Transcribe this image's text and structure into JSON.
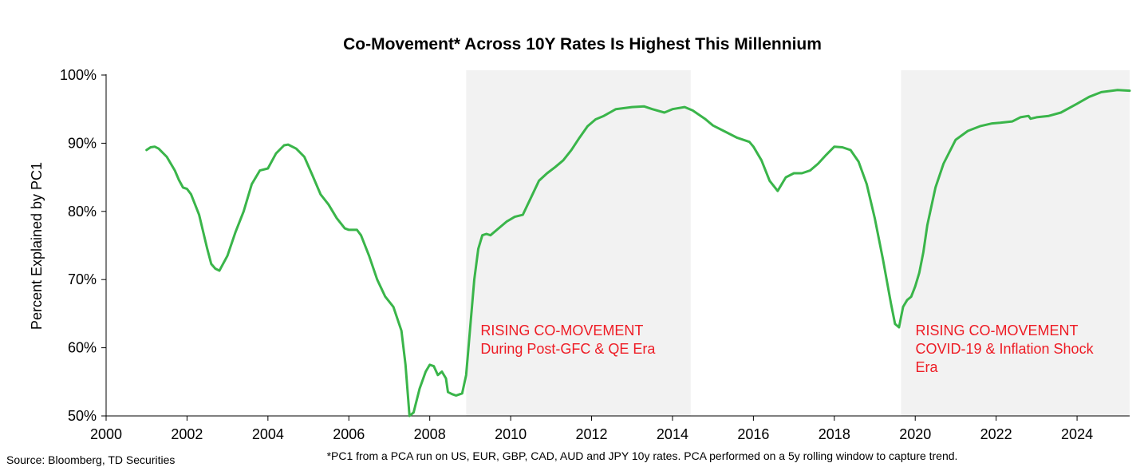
{
  "chart_data": {
    "type": "line",
    "title": "Co-Movement* Across 10Y Rates Is Highest This Millennium",
    "xlabel": "",
    "ylabel": "Percent Explained by PC1",
    "xlim": [
      2000,
      2025.3
    ],
    "ylim": [
      50,
      100
    ],
    "x_ticks": [
      2000,
      2002,
      2004,
      2006,
      2008,
      2010,
      2012,
      2014,
      2016,
      2018,
      2020,
      2022,
      2024
    ],
    "x_tick_labels": [
      "2000",
      "2002",
      "2004",
      "2006",
      "2008",
      "2010",
      "2012",
      "2014",
      "2016",
      "2018",
      "2020",
      "2022",
      "2024"
    ],
    "y_ticks": [
      50,
      60,
      70,
      80,
      90,
      100
    ],
    "y_tick_labels": [
      "50%",
      "60%",
      "70%",
      "80%",
      "90%",
      "100%"
    ],
    "grid": false,
    "legend": "none",
    "series_color": "#3ab54a",
    "shade_color": "#f2f2f2",
    "annotation_color": "#ee1c25",
    "shaded_regions": [
      {
        "x0": 2008.9,
        "x1": 2014.45,
        "lines": [
          "RISING CO-MOVEMENT",
          "During Post-GFC & QE Era"
        ]
      },
      {
        "x0": 2019.65,
        "x1": 2025.3,
        "lines": [
          "RISING CO-MOVEMENT",
          "COVID-19 & Inflation Shock",
          "Era"
        ]
      }
    ],
    "series": [
      {
        "name": "PC1 share",
        "x": [
          2001.0,
          2001.1,
          2001.2,
          2001.3,
          2001.5,
          2001.7,
          2001.8,
          2001.9,
          2002.0,
          2002.1,
          2002.3,
          2002.5,
          2002.6,
          2002.7,
          2002.8,
          2003.0,
          2003.2,
          2003.4,
          2003.6,
          2003.8,
          2004.0,
          2004.2,
          2004.4,
          2004.5,
          2004.7,
          2004.9,
          2005.1,
          2005.3,
          2005.5,
          2005.7,
          2005.9,
          2006.0,
          2006.2,
          2006.3,
          2006.5,
          2006.7,
          2006.9,
          2007.1,
          2007.3,
          2007.4,
          2007.5,
          2007.6,
          2007.75,
          2007.9,
          2008.0,
          2008.1,
          2008.2,
          2008.3,
          2008.4,
          2008.45,
          2008.55,
          2008.65,
          2008.8,
          2008.9,
          2009.0,
          2009.1,
          2009.2,
          2009.3,
          2009.4,
          2009.5,
          2009.7,
          2009.9,
          2010.1,
          2010.3,
          2010.5,
          2010.7,
          2010.9,
          2011.1,
          2011.3,
          2011.5,
          2011.7,
          2011.9,
          2012.1,
          2012.3,
          2012.6,
          2013.0,
          2013.3,
          2013.5,
          2013.8,
          2014.0,
          2014.3,
          2014.5,
          2014.8,
          2015.0,
          2015.3,
          2015.6,
          2015.9,
          2016.0,
          2016.2,
          2016.4,
          2016.6,
          2016.8,
          2017.0,
          2017.2,
          2017.4,
          2017.6,
          2017.8,
          2018.0,
          2018.2,
          2018.4,
          2018.6,
          2018.8,
          2019.0,
          2019.2,
          2019.4,
          2019.5,
          2019.6,
          2019.7,
          2019.8,
          2019.9,
          2020.0,
          2020.1,
          2020.2,
          2020.3,
          2020.5,
          2020.7,
          2021.0,
          2021.3,
          2021.6,
          2021.9,
          2022.1,
          2022.4,
          2022.6,
          2022.8,
          2022.85,
          2023.0,
          2023.3,
          2023.6,
          2024.0,
          2024.3,
          2024.6,
          2025.0,
          2025.3
        ],
        "y": [
          89.0,
          89.4,
          89.5,
          89.2,
          88.0,
          86.0,
          84.6,
          83.5,
          83.3,
          82.5,
          79.5,
          74.5,
          72.3,
          71.6,
          71.3,
          73.5,
          77.0,
          80.0,
          84.0,
          86.0,
          86.3,
          88.5,
          89.7,
          89.8,
          89.2,
          88.0,
          85.3,
          82.5,
          81.0,
          79.0,
          77.5,
          77.3,
          77.3,
          76.5,
          73.5,
          70.0,
          67.5,
          66.0,
          62.5,
          57.5,
          50.0,
          50.5,
          54.0,
          56.5,
          57.5,
          57.3,
          56.0,
          56.5,
          55.5,
          53.5,
          53.2,
          53.0,
          53.3,
          56.0,
          63.0,
          70.0,
          74.5,
          76.5,
          76.7,
          76.5,
          77.5,
          78.5,
          79.2,
          79.5,
          82.0,
          84.5,
          85.6,
          86.5,
          87.5,
          89.0,
          90.8,
          92.5,
          93.5,
          94.0,
          95.0,
          95.3,
          95.4,
          95.0,
          94.5,
          95.0,
          95.3,
          94.8,
          93.6,
          92.6,
          91.7,
          90.8,
          90.2,
          89.5,
          87.5,
          84.5,
          83.0,
          85.0,
          85.6,
          85.6,
          86.0,
          87.0,
          88.3,
          89.5,
          89.4,
          89.0,
          87.3,
          84.0,
          79.0,
          73.0,
          66.5,
          63.5,
          63.0,
          66.0,
          67.0,
          67.5,
          69.0,
          71.0,
          74.0,
          78.0,
          83.5,
          87.0,
          90.5,
          91.8,
          92.5,
          92.9,
          93.0,
          93.2,
          93.8,
          94.0,
          93.6,
          93.8,
          94.0,
          94.5,
          95.8,
          96.8,
          97.5,
          97.8,
          97.7
        ]
      }
    ],
    "source": "Source: Bloomberg, TD Securities",
    "footnote": "*PC1 from a PCA run on US, EUR, GBP, CAD, AUD and JPY 10y rates. PCA performed on a 5y rolling window to capture trend."
  }
}
